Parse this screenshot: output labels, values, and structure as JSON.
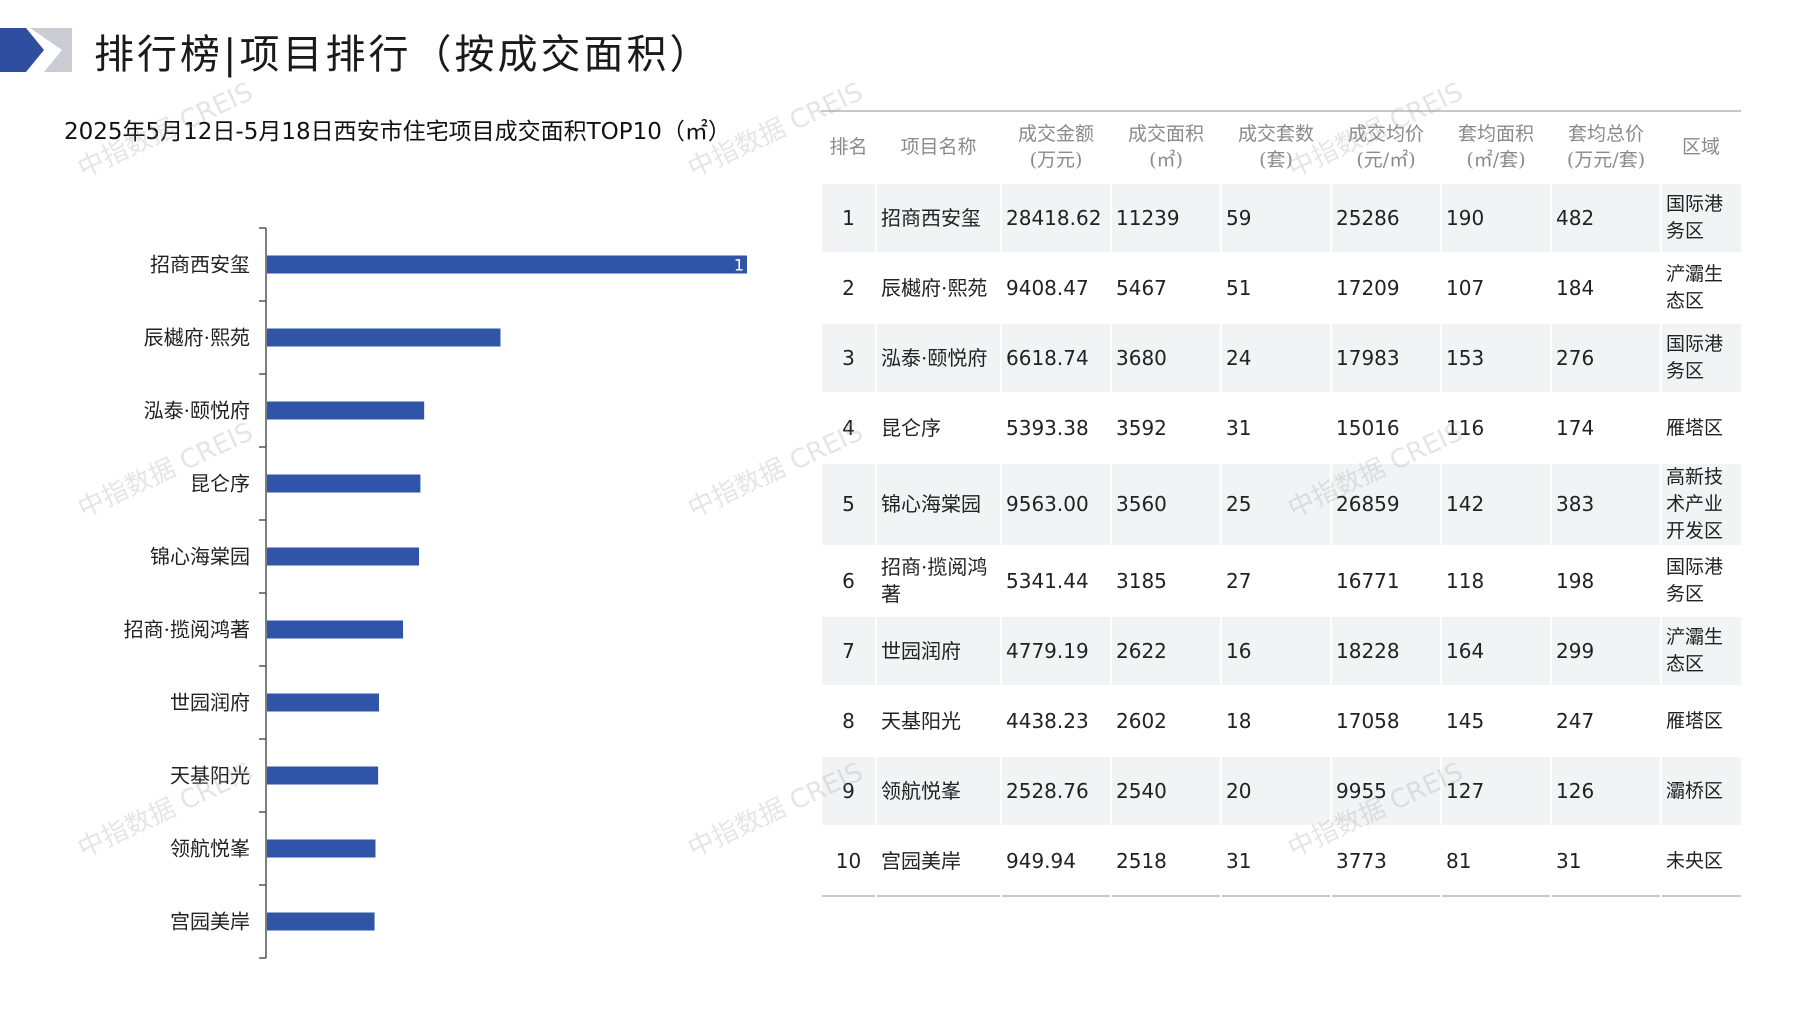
{
  "header": {
    "title": "排行榜|项目排行（按成交面积）"
  },
  "chart_title": "2025年5月12日-5月18日西安市住宅项目成交面积TOP10（㎡）",
  "watermark": "中指数据 CREIS",
  "colors": {
    "bar": "#2f54a8",
    "logo_dark": "#2f4ea0",
    "logo_light": "#c9ccd3"
  },
  "chart_data": {
    "type": "bar",
    "orientation": "horizontal",
    "categories": [
      "招商西安玺",
      "辰樾府·熙苑",
      "泓泰·颐悦府",
      "昆仑序",
      "锦心海棠园",
      "招商·揽阅鸿著",
      "世园润府",
      "天基阳光",
      "领航悦峯",
      "宫园美岸"
    ],
    "values": [
      11239,
      5467,
      3680,
      3592,
      3560,
      3185,
      2622,
      2602,
      2540,
      2518
    ],
    "data_labels": [
      "1",
      "",
      "",
      "",
      "",
      "",
      "",
      "",
      "",
      ""
    ],
    "xlim": [
      0,
      11239
    ],
    "grid": false,
    "legend": "none"
  },
  "table": {
    "headers": [
      [
        "排名"
      ],
      [
        "项目名称"
      ],
      [
        "成交金额",
        "(万元)"
      ],
      [
        "成交面积",
        "(㎡)"
      ],
      [
        "成交套数",
        "(套)"
      ],
      [
        "成交均价",
        "(元/㎡)"
      ],
      [
        "套均面积",
        "(㎡/套)"
      ],
      [
        "套均总价",
        "(万元/套)"
      ],
      [
        "区域"
      ]
    ],
    "rows": [
      [
        "1",
        "招商西安玺",
        "28418.62",
        "11239",
        "59",
        "25286",
        "190",
        "482",
        "国际港务区"
      ],
      [
        "2",
        "辰樾府·熙苑",
        "9408.47",
        "5467",
        "51",
        "17209",
        "107",
        "184",
        "浐灞生态区"
      ],
      [
        "3",
        "泓泰·颐悦府",
        "6618.74",
        "3680",
        "24",
        "17983",
        "153",
        "276",
        "国际港务区"
      ],
      [
        "4",
        "昆仑序",
        "5393.38",
        "3592",
        "31",
        "15016",
        "116",
        "174",
        "雁塔区"
      ],
      [
        "5",
        "锦心海棠园",
        "9563.00",
        "3560",
        "25",
        "26859",
        "142",
        "383",
        "高新技术产业开发区"
      ],
      [
        "6",
        "招商·揽阅鸿著",
        "5341.44",
        "3185",
        "27",
        "16771",
        "118",
        "198",
        "国际港务区"
      ],
      [
        "7",
        "世园润府",
        "4779.19",
        "2622",
        "16",
        "18228",
        "164",
        "299",
        "浐灞生态区"
      ],
      [
        "8",
        "天基阳光",
        "4438.23",
        "2602",
        "18",
        "17058",
        "145",
        "247",
        "雁塔区"
      ],
      [
        "9",
        "领航悦峯",
        "2528.76",
        "2540",
        "20",
        "9955",
        "127",
        "126",
        "灞桥区"
      ],
      [
        "10",
        "宫园美岸",
        "949.94",
        "2518",
        "31",
        "3773",
        "81",
        "31",
        "未央区"
      ]
    ]
  }
}
